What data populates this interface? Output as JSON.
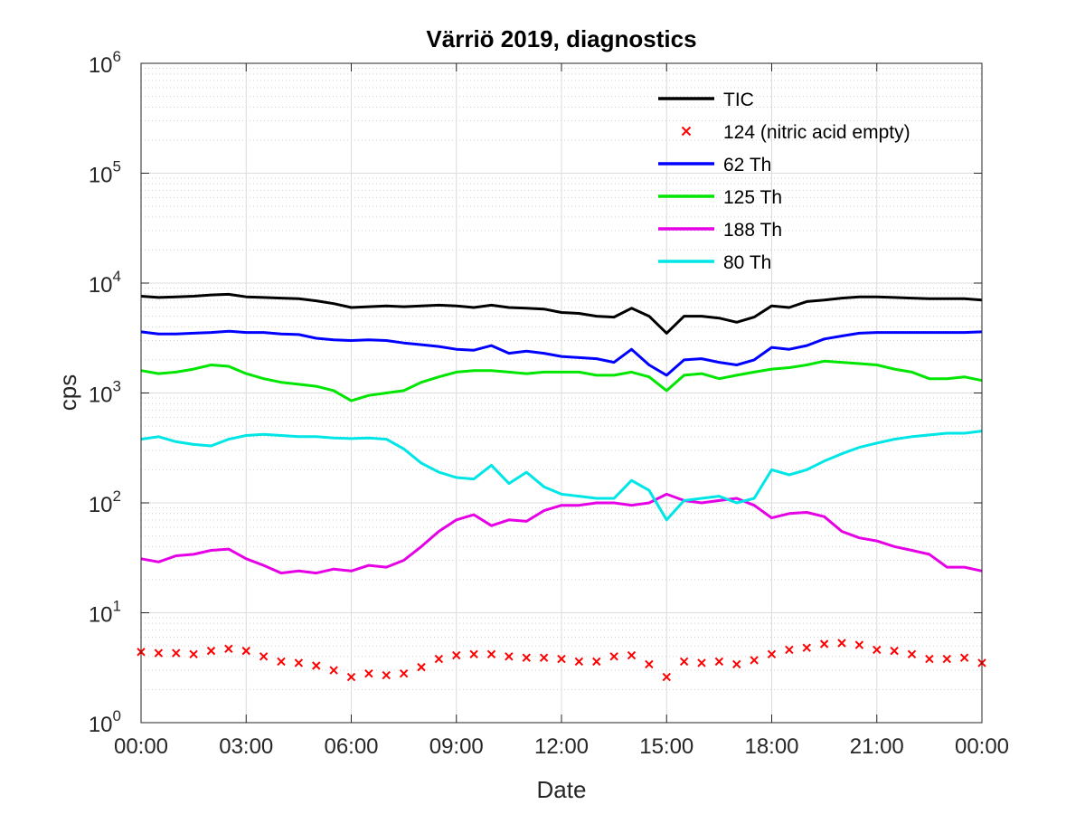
{
  "chart_data": {
    "type": "line",
    "title": "Värriö 2019, diagnostics",
    "xlabel": "Date",
    "ylabel": "cps",
    "yscale": "log",
    "ylim": [
      1,
      1000000
    ],
    "xlim": [
      0,
      24
    ],
    "grid": true,
    "legend_position": "top-right",
    "x_ticks": [
      {
        "value": 0,
        "label": "00:00"
      },
      {
        "value": 3,
        "label": "03:00"
      },
      {
        "value": 6,
        "label": "06:00"
      },
      {
        "value": 9,
        "label": "09:00"
      },
      {
        "value": 12,
        "label": "12:00"
      },
      {
        "value": 15,
        "label": "15:00"
      },
      {
        "value": 18,
        "label": "18:00"
      },
      {
        "value": 21,
        "label": "21:00"
      },
      {
        "value": 24,
        "label": "00:00"
      }
    ],
    "y_ticks": [
      {
        "value": 1,
        "base": "10",
        "exp": "0"
      },
      {
        "value": 10,
        "base": "10",
        "exp": "1"
      },
      {
        "value": 100,
        "base": "10",
        "exp": "2"
      },
      {
        "value": 1000,
        "base": "10",
        "exp": "3"
      },
      {
        "value": 10000,
        "base": "10",
        "exp": "4"
      },
      {
        "value": 100000,
        "base": "10",
        "exp": "5"
      },
      {
        "value": 1000000,
        "base": "10",
        "exp": "6"
      }
    ],
    "series": [
      {
        "name": "TIC",
        "color": "#000000",
        "style": "line",
        "x": [
          0,
          0.5,
          1,
          1.5,
          2,
          2.5,
          3,
          3.5,
          4,
          4.5,
          5,
          5.5,
          6,
          6.5,
          7,
          7.5,
          8,
          8.5,
          9,
          9.5,
          10,
          10.5,
          11,
          11.5,
          12,
          12.5,
          13,
          13.5,
          14,
          14.5,
          15,
          15.5,
          16,
          16.5,
          17,
          17.5,
          18,
          18.5,
          19,
          19.5,
          20,
          20.5,
          21,
          21.5,
          22,
          22.5,
          23,
          23.5,
          24
        ],
        "values": [
          7600,
          7400,
          7500,
          7600,
          7800,
          7900,
          7500,
          7400,
          7300,
          7200,
          6900,
          6500,
          6000,
          6100,
          6200,
          6100,
          6200,
          6300,
          6200,
          6000,
          6300,
          6000,
          5900,
          5800,
          5400,
          5300,
          5000,
          4900,
          5900,
          5000,
          3500,
          5000,
          5000,
          4800,
          4400,
          4900,
          6200,
          6000,
          6800,
          7000,
          7300,
          7500,
          7500,
          7400,
          7300,
          7200,
          7200,
          7200,
          7000
        ]
      },
      {
        "name": "124 (nitric acid empty)",
        "color": "#ff0000",
        "style": "x",
        "x": [
          0,
          0.5,
          1,
          1.5,
          2,
          2.5,
          3,
          3.5,
          4,
          4.5,
          5,
          5.5,
          6,
          6.5,
          7,
          7.5,
          8,
          8.5,
          9,
          9.5,
          10,
          10.5,
          11,
          11.5,
          12,
          12.5,
          13,
          13.5,
          14,
          14.5,
          15,
          15.5,
          16,
          16.5,
          17,
          17.5,
          18,
          18.5,
          19,
          19.5,
          20,
          20.5,
          21,
          21.5,
          22,
          22.5,
          23,
          23.5,
          24
        ],
        "values": [
          4.4,
          4.3,
          4.3,
          4.2,
          4.5,
          4.7,
          4.5,
          4.0,
          3.6,
          3.5,
          3.3,
          3.0,
          2.6,
          2.8,
          2.7,
          2.8,
          3.2,
          3.8,
          4.1,
          4.2,
          4.2,
          4.0,
          3.9,
          3.9,
          3.8,
          3.6,
          3.6,
          4.0,
          4.1,
          3.4,
          2.6,
          3.6,
          3.5,
          3.6,
          3.4,
          3.7,
          4.2,
          4.6,
          4.8,
          5.2,
          5.3,
          5.1,
          4.6,
          4.5,
          4.2,
          3.8,
          3.8,
          3.9,
          3.5
        ]
      },
      {
        "name": "62 Th",
        "color": "#0000ff",
        "style": "line",
        "x": [
          0,
          0.5,
          1,
          1.5,
          2,
          2.5,
          3,
          3.5,
          4,
          4.5,
          5,
          5.5,
          6,
          6.5,
          7,
          7.5,
          8,
          8.5,
          9,
          9.5,
          10,
          10.5,
          11,
          11.5,
          12,
          12.5,
          13,
          13.5,
          14,
          14.5,
          15,
          15.5,
          16,
          16.5,
          17,
          17.5,
          18,
          18.5,
          19,
          19.5,
          20,
          20.5,
          21,
          21.5,
          22,
          22.5,
          23,
          23.5,
          24
        ],
        "values": [
          3600,
          3450,
          3450,
          3500,
          3550,
          3650,
          3550,
          3550,
          3450,
          3400,
          3150,
          3050,
          3000,
          3050,
          3000,
          2850,
          2750,
          2650,
          2500,
          2450,
          2700,
          2300,
          2400,
          2300,
          2150,
          2100,
          2050,
          1900,
          2500,
          1800,
          1450,
          2000,
          2050,
          1900,
          1800,
          2000,
          2600,
          2500,
          2700,
          3100,
          3300,
          3500,
          3550,
          3550,
          3550,
          3550,
          3550,
          3550,
          3600
        ]
      },
      {
        "name": "125 Th",
        "color": "#00e600",
        "style": "line",
        "x": [
          0,
          0.5,
          1,
          1.5,
          2,
          2.5,
          3,
          3.5,
          4,
          4.5,
          5,
          5.5,
          6,
          6.5,
          7,
          7.5,
          8,
          8.5,
          9,
          9.5,
          10,
          10.5,
          11,
          11.5,
          12,
          12.5,
          13,
          13.5,
          14,
          14.5,
          15,
          15.5,
          16,
          16.5,
          17,
          17.5,
          18,
          18.5,
          19,
          19.5,
          20,
          20.5,
          21,
          21.5,
          22,
          22.5,
          23,
          23.5,
          24
        ],
        "values": [
          1600,
          1500,
          1550,
          1650,
          1800,
          1750,
          1500,
          1350,
          1250,
          1200,
          1150,
          1050,
          850,
          950,
          1000,
          1050,
          1250,
          1400,
          1550,
          1600,
          1600,
          1550,
          1500,
          1550,
          1550,
          1550,
          1450,
          1450,
          1550,
          1400,
          1050,
          1450,
          1500,
          1350,
          1450,
          1550,
          1650,
          1700,
          1800,
          1950,
          1900,
          1850,
          1800,
          1650,
          1550,
          1350,
          1350,
          1400,
          1300
        ]
      },
      {
        "name": "188 Th",
        "color": "#e600e6",
        "style": "line",
        "x": [
          0,
          0.5,
          1,
          1.5,
          2,
          2.5,
          3,
          3.5,
          4,
          4.5,
          5,
          5.5,
          6,
          6.5,
          7,
          7.5,
          8,
          8.5,
          9,
          9.5,
          10,
          10.5,
          11,
          11.5,
          12,
          12.5,
          13,
          13.5,
          14,
          14.5,
          15,
          15.5,
          16,
          16.5,
          17,
          17.5,
          18,
          18.5,
          19,
          19.5,
          20,
          20.5,
          21,
          21.5,
          22,
          22.5,
          23,
          23.5,
          24
        ],
        "values": [
          31,
          29,
          33,
          34,
          37,
          38,
          31,
          27,
          23,
          24,
          23,
          25,
          24,
          27,
          26,
          30,
          40,
          55,
          70,
          78,
          62,
          70,
          68,
          85,
          95,
          95,
          100,
          100,
          95,
          100,
          120,
          105,
          100,
          105,
          110,
          95,
          73,
          80,
          82,
          75,
          55,
          48,
          45,
          40,
          37,
          34,
          26,
          26,
          24
        ]
      },
      {
        "name": "80 Th",
        "color": "#00e6e6",
        "style": "line",
        "x": [
          0,
          0.5,
          1,
          1.5,
          2,
          2.5,
          3,
          3.5,
          4,
          4.5,
          5,
          5.5,
          6,
          6.5,
          7,
          7.5,
          8,
          8.5,
          9,
          9.5,
          10,
          10.5,
          11,
          11.5,
          12,
          12.5,
          13,
          13.5,
          14,
          14.5,
          15,
          15.5,
          16,
          16.5,
          17,
          17.5,
          18,
          18.5,
          19,
          19.5,
          20,
          20.5,
          21,
          21.5,
          22,
          22.5,
          23,
          23.5,
          24
        ],
        "values": [
          380,
          400,
          360,
          340,
          330,
          380,
          410,
          420,
          410,
          400,
          400,
          390,
          385,
          390,
          380,
          310,
          230,
          190,
          170,
          165,
          220,
          150,
          190,
          140,
          120,
          115,
          110,
          110,
          160,
          130,
          70,
          105,
          110,
          115,
          100,
          110,
          200,
          180,
          200,
          240,
          280,
          320,
          350,
          380,
          400,
          415,
          430,
          430,
          450
        ]
      }
    ]
  }
}
